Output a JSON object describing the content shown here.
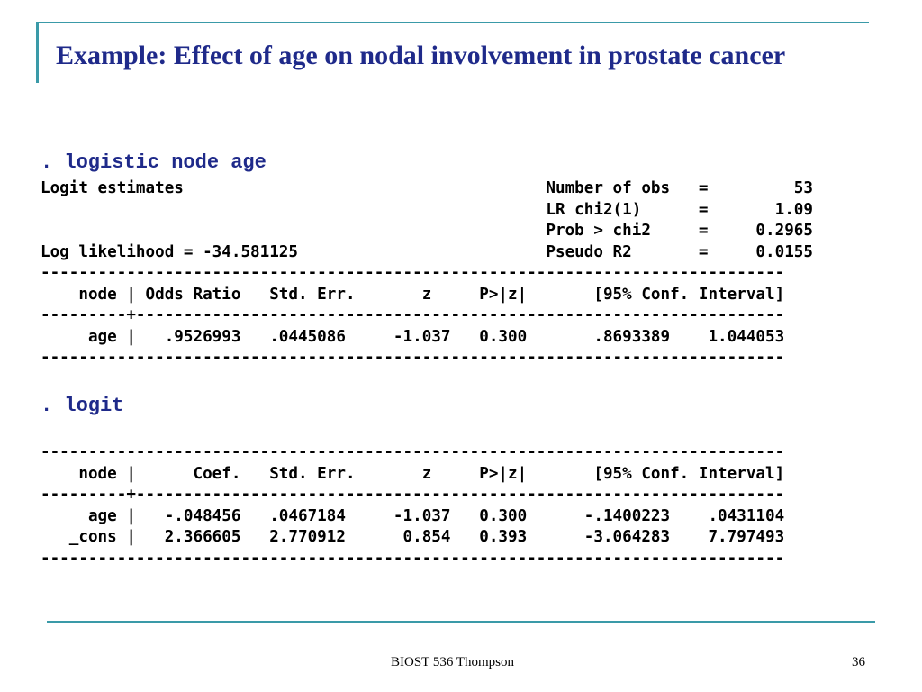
{
  "slide": {
    "title": "Example: Effect of age on nodal involvement in prostate cancer",
    "footer_text": "BIOST 536 Thompson",
    "page_number": "36",
    "accent_color": "#3a9aa8",
    "title_color": "#1f2a8a"
  },
  "output1": {
    "command": ". logistic node age",
    "lines": [
      "Logit estimates                                      Number of obs   =         53",
      "                                                     LR chi2(1)      =       1.09",
      "                                                     Prob > chi2     =     0.2965",
      "Log likelihood = -34.581125                          Pseudo R2       =     0.0155",
      "------------------------------------------------------------------------------",
      "    node | Odds Ratio   Std. Err.       z     P>|z|       [95% Conf. Interval]",
      "---------+--------------------------------------------------------------------",
      "     age |   .9526993   .0445086     -1.037   0.300       .8693389    1.044053",
      "------------------------------------------------------------------------------"
    ]
  },
  "output2": {
    "command": ". logit",
    "lines": [
      "------------------------------------------------------------------------------",
      "    node |      Coef.   Std. Err.       z     P>|z|       [95% Conf. Interval]",
      "---------+--------------------------------------------------------------------",
      "     age |   -.048456   .0467184     -1.037   0.300      -.1400223    .0431104",
      "   _cons |   2.366605   2.770912      0.854   0.393      -3.064283    7.797493",
      "------------------------------------------------------------------------------"
    ]
  }
}
